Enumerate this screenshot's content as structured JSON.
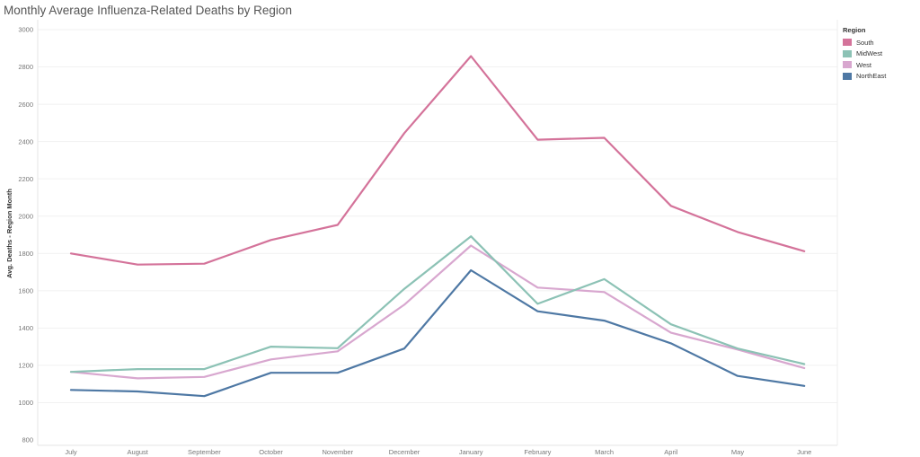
{
  "chart_data": {
    "type": "line",
    "title": "Monthly Average Influenza-Related Deaths by Region",
    "xlabel": "",
    "ylabel": "Avg. Deaths - Region Month",
    "categories": [
      "July",
      "August",
      "September",
      "October",
      "November",
      "December",
      "January",
      "February",
      "March",
      "April",
      "May",
      "June"
    ],
    "ylim": [
      800,
      3000
    ],
    "yticks": [
      "800",
      "1000",
      "1200",
      "1400",
      "1600",
      "1800",
      "2000",
      "2200",
      "2400",
      "2600",
      "2800",
      "3000"
    ],
    "grid": true,
    "legend_position": "top-right",
    "legend_title": "Region",
    "series": [
      {
        "name": "South",
        "color": "#d4739a",
        "values": [
          1800,
          1740,
          1745,
          1872,
          1953,
          2445,
          2858,
          2410,
          2420,
          2055,
          1915,
          1812
        ]
      },
      {
        "name": "MidWest",
        "color": "#8cc2b5",
        "values": [
          1165,
          1180,
          1180,
          1300,
          1292,
          1610,
          1892,
          1530,
          1662,
          1420,
          1290,
          1207
        ]
      },
      {
        "name": "West",
        "color": "#d8a7cf",
        "values": [
          1165,
          1130,
          1138,
          1232,
          1275,
          1525,
          1842,
          1617,
          1593,
          1375,
          1285,
          1185
        ]
      },
      {
        "name": "NorthEast",
        "color": "#4e78a4",
        "values": [
          1068,
          1060,
          1035,
          1160,
          1160,
          1290,
          1710,
          1490,
          1440,
          1318,
          1143,
          1090
        ]
      }
    ]
  }
}
